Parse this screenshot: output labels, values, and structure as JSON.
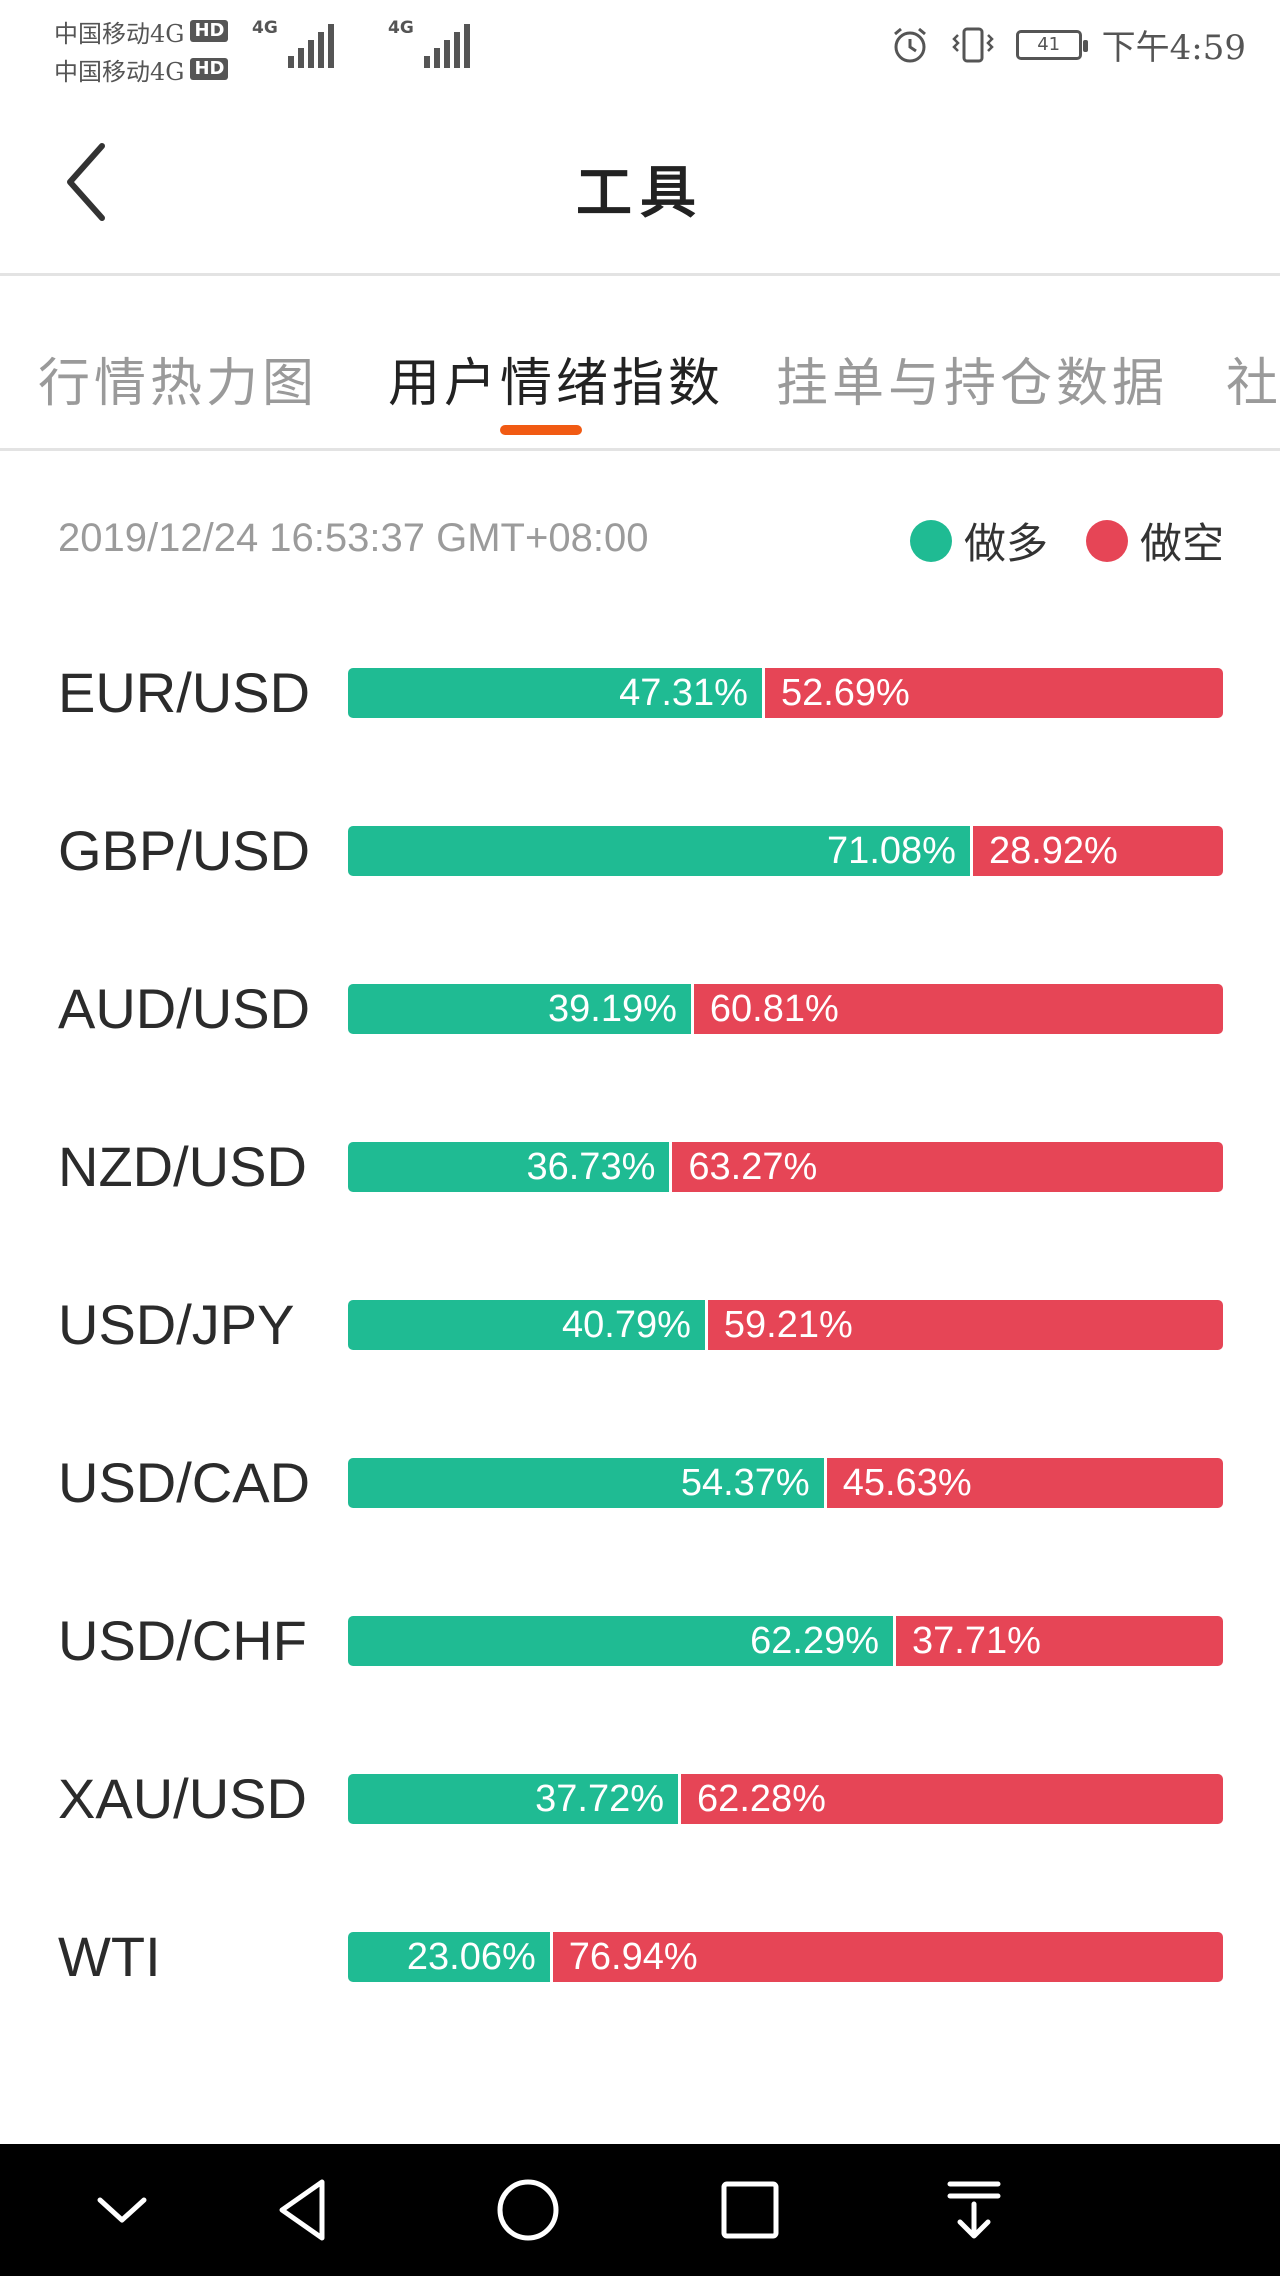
{
  "status_bar": {
    "carrier_1": "中国移动4G",
    "carrier_2": "中国移动4G",
    "hd": "HD",
    "network_1": "4G",
    "network_2": "4G",
    "battery": "41",
    "time": "下午4:59"
  },
  "header": {
    "title": "工具"
  },
  "tabs": [
    {
      "label": "行情热力图",
      "active": false
    },
    {
      "label": "用户情绪指数",
      "active": true
    },
    {
      "label": "挂单与持仓数据",
      "active": false
    },
    {
      "label": "社",
      "active": false
    }
  ],
  "timestamp": "2019/12/24 16:53:37 GMT+08:00",
  "legend": {
    "long_label": "做多",
    "short_label": "做空"
  },
  "colors": {
    "long": "#1fbb93",
    "short": "#e64556",
    "tab_indicator": "#f15a13"
  },
  "sentiment": [
    {
      "symbol": "EUR/USD",
      "long": 47.31,
      "short": 52.69,
      "long_text": "47.31%",
      "short_text": "52.69%"
    },
    {
      "symbol": "GBP/USD",
      "long": 71.08,
      "short": 28.92,
      "long_text": "71.08%",
      "short_text": "28.92%"
    },
    {
      "symbol": "AUD/USD",
      "long": 39.19,
      "short": 60.81,
      "long_text": "39.19%",
      "short_text": "60.81%"
    },
    {
      "symbol": "NZD/USD",
      "long": 36.73,
      "short": 63.27,
      "long_text": "36.73%",
      "short_text": "63.27%"
    },
    {
      "symbol": "USD/JPY",
      "long": 40.79,
      "short": 59.21,
      "long_text": "40.79%",
      "short_text": "59.21%"
    },
    {
      "symbol": "USD/CAD",
      "long": 54.37,
      "short": 45.63,
      "long_text": "54.37%",
      "short_text": "45.63%"
    },
    {
      "symbol": "USD/CHF",
      "long": 62.29,
      "short": 37.71,
      "long_text": "62.29%",
      "short_text": "37.71%"
    },
    {
      "symbol": "XAU/USD",
      "long": 37.72,
      "short": 62.28,
      "long_text": "37.72%",
      "short_text": "62.28%"
    },
    {
      "symbol": "WTI",
      "long": 23.06,
      "short": 76.94,
      "long_text": "23.06%",
      "short_text": "76.94%"
    }
  ],
  "icons": {
    "back": "chevron-left-icon",
    "alarm": "alarm-icon",
    "vibrate": "vibrate-icon",
    "nav": [
      "chevron-down-icon",
      "back-triangle-icon",
      "home-circle-icon",
      "recents-square-icon",
      "notification-pull-icon"
    ]
  }
}
